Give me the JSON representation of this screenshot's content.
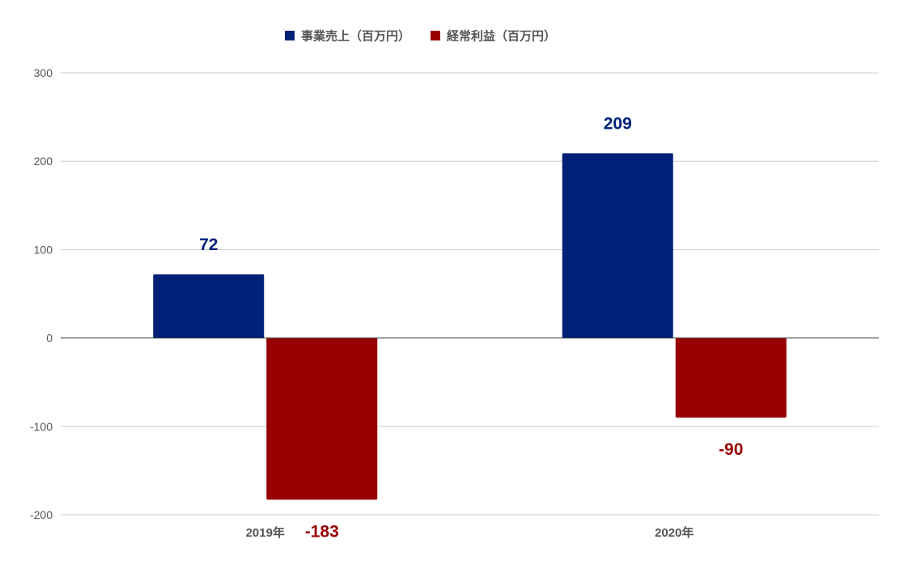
{
  "chart_data": {
    "type": "bar",
    "categories": [
      "2019年",
      "2020年"
    ],
    "series": [
      {
        "name": "事業売上（百万円）",
        "values": [
          72,
          209
        ],
        "color": "#002177"
      },
      {
        "name": "経常利益（百万円）",
        "values": [
          -183,
          -90
        ],
        "color": "#990000"
      }
    ],
    "ylim": [
      -200,
      300
    ],
    "yticks": [
      "300",
      "200",
      "100",
      "0",
      "-100",
      "-200"
    ],
    "ytick_values": [
      300,
      200,
      100,
      0,
      -100,
      -200
    ],
    "data_labels": [
      [
        "72",
        "209"
      ],
      [
        "-183",
        "-90"
      ]
    ],
    "legend_position": "top",
    "grid": true
  }
}
